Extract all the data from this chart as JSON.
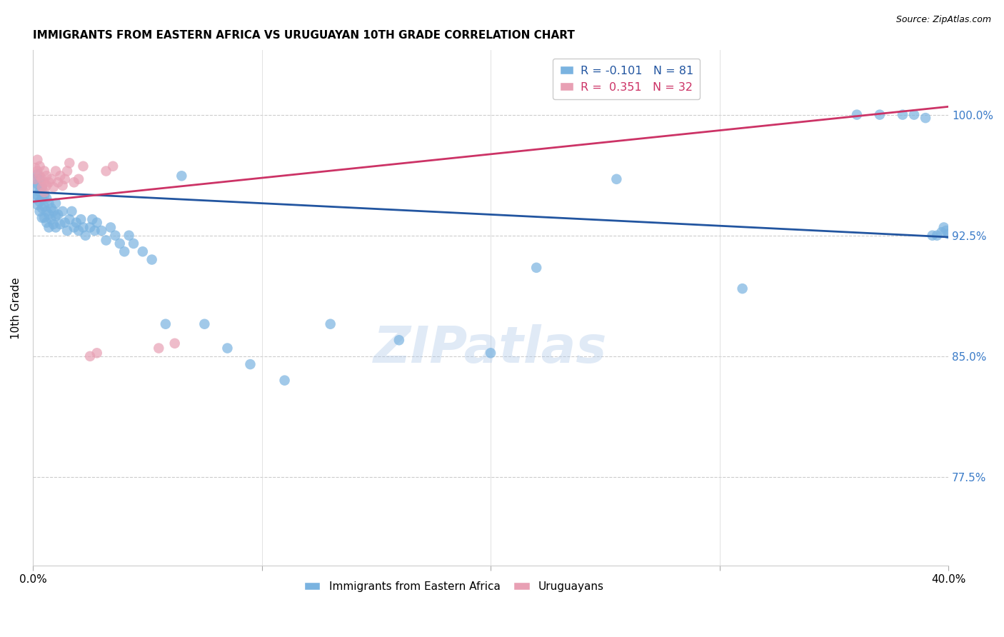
{
  "title": "IMMIGRANTS FROM EASTERN AFRICA VS URUGUAYAN 10TH GRADE CORRELATION CHART",
  "source": "Source: ZipAtlas.com",
  "ylabel": "10th Grade",
  "ytick_labels": [
    "77.5%",
    "85.0%",
    "92.5%",
    "100.0%"
  ],
  "ytick_values": [
    0.775,
    0.85,
    0.925,
    1.0
  ],
  "xlim": [
    0.0,
    0.4
  ],
  "ylim": [
    0.72,
    1.04
  ],
  "blue_r": -0.101,
  "blue_n": 81,
  "pink_r": 0.351,
  "pink_n": 32,
  "blue_color": "#7ab3e0",
  "pink_color": "#e8a0b4",
  "blue_line_color": "#2255a0",
  "pink_line_color": "#cc3366",
  "watermark": "ZIPatlas",
  "blue_line_x0": 0.0,
  "blue_line_y0": 0.952,
  "blue_line_x1": 0.4,
  "blue_line_y1": 0.924,
  "pink_line_x0": 0.0,
  "pink_line_y0": 0.946,
  "pink_line_x1": 0.4,
  "pink_line_y1": 1.005,
  "blue_x": [
    0.001,
    0.001,
    0.001,
    0.002,
    0.002,
    0.002,
    0.002,
    0.003,
    0.003,
    0.003,
    0.003,
    0.004,
    0.004,
    0.004,
    0.004,
    0.005,
    0.005,
    0.005,
    0.006,
    0.006,
    0.006,
    0.007,
    0.007,
    0.007,
    0.008,
    0.008,
    0.009,
    0.009,
    0.01,
    0.01,
    0.01,
    0.011,
    0.012,
    0.013,
    0.014,
    0.015,
    0.016,
    0.017,
    0.018,
    0.019,
    0.02,
    0.021,
    0.022,
    0.023,
    0.025,
    0.026,
    0.027,
    0.028,
    0.03,
    0.032,
    0.034,
    0.036,
    0.038,
    0.04,
    0.042,
    0.044,
    0.048,
    0.052,
    0.058,
    0.065,
    0.075,
    0.085,
    0.095,
    0.11,
    0.13,
    0.16,
    0.2,
    0.22,
    0.255,
    0.31,
    0.36,
    0.37,
    0.38,
    0.385,
    0.39,
    0.393,
    0.395,
    0.397,
    0.398,
    0.399,
    0.4
  ],
  "blue_y": [
    0.96,
    0.955,
    0.948,
    0.963,
    0.957,
    0.95,
    0.944,
    0.96,
    0.952,
    0.946,
    0.94,
    0.955,
    0.948,
    0.942,
    0.936,
    0.95,
    0.943,
    0.936,
    0.948,
    0.94,
    0.933,
    0.945,
    0.938,
    0.93,
    0.942,
    0.935,
    0.94,
    0.932,
    0.945,
    0.937,
    0.93,
    0.938,
    0.932,
    0.94,
    0.933,
    0.928,
    0.935,
    0.94,
    0.93,
    0.933,
    0.928,
    0.935,
    0.93,
    0.925,
    0.93,
    0.935,
    0.928,
    0.933,
    0.928,
    0.922,
    0.93,
    0.925,
    0.92,
    0.915,
    0.925,
    0.92,
    0.915,
    0.91,
    0.87,
    0.962,
    0.87,
    0.855,
    0.845,
    0.835,
    0.87,
    0.86,
    0.852,
    0.905,
    0.96,
    0.892,
    1.0,
    1.0,
    1.0,
    1.0,
    0.998,
    0.925,
    0.925,
    0.927,
    0.93,
    0.928,
    0.926
  ],
  "pink_x": [
    0.001,
    0.001,
    0.002,
    0.002,
    0.003,
    0.003,
    0.004,
    0.004,
    0.005,
    0.005,
    0.005,
    0.006,
    0.006,
    0.007,
    0.008,
    0.009,
    0.01,
    0.011,
    0.012,
    0.013,
    0.014,
    0.015,
    0.016,
    0.018,
    0.02,
    0.022,
    0.025,
    0.028,
    0.032,
    0.035,
    0.055,
    0.062
  ],
  "pink_y": [
    0.967,
    0.96,
    0.972,
    0.965,
    0.968,
    0.962,
    0.96,
    0.955,
    0.965,
    0.958,
    0.952,
    0.962,
    0.956,
    0.958,
    0.96,
    0.955,
    0.965,
    0.958,
    0.962,
    0.956,
    0.96,
    0.965,
    0.97,
    0.958,
    0.96,
    0.968,
    0.85,
    0.852,
    0.965,
    0.968,
    0.855,
    0.858
  ]
}
